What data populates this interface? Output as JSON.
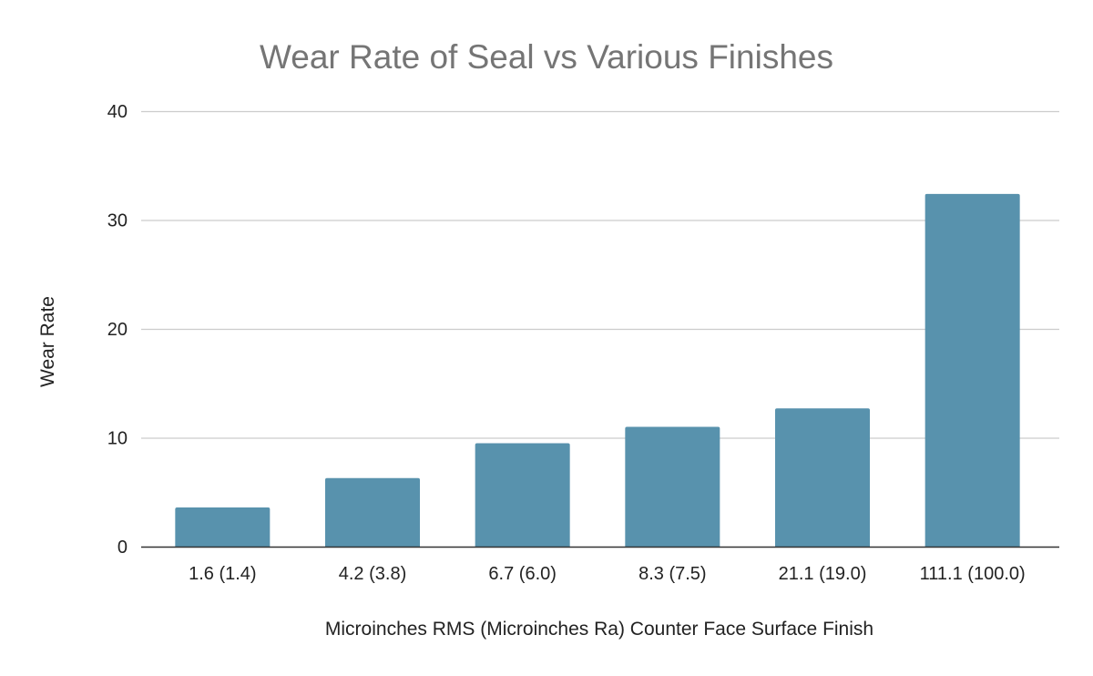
{
  "chart_data": {
    "type": "bar",
    "title": "Wear Rate of Seal vs Various Finishes",
    "xlabel": "Microinches RMS (Microinches Ra) Counter Face Surface Finish",
    "ylabel": "Wear Rate",
    "categories": [
      "1.6 (1.4)",
      "4.2 (3.8)",
      "6.7 (6.0)",
      "8.3 (7.5)",
      "21.1 (19.0)",
      "111.1 (100.0)"
    ],
    "values": [
      3.6,
      6.3,
      9.5,
      11.0,
      12.7,
      32.4
    ],
    "ylim": [
      0,
      40
    ],
    "yticks": [
      0,
      10,
      20,
      30,
      40
    ],
    "grid": true,
    "legend": "none",
    "colors": {
      "bar": "#5892ad",
      "title": "#757575",
      "grid": "#cccccc",
      "baseline": "#333333",
      "text": "#222222"
    }
  }
}
